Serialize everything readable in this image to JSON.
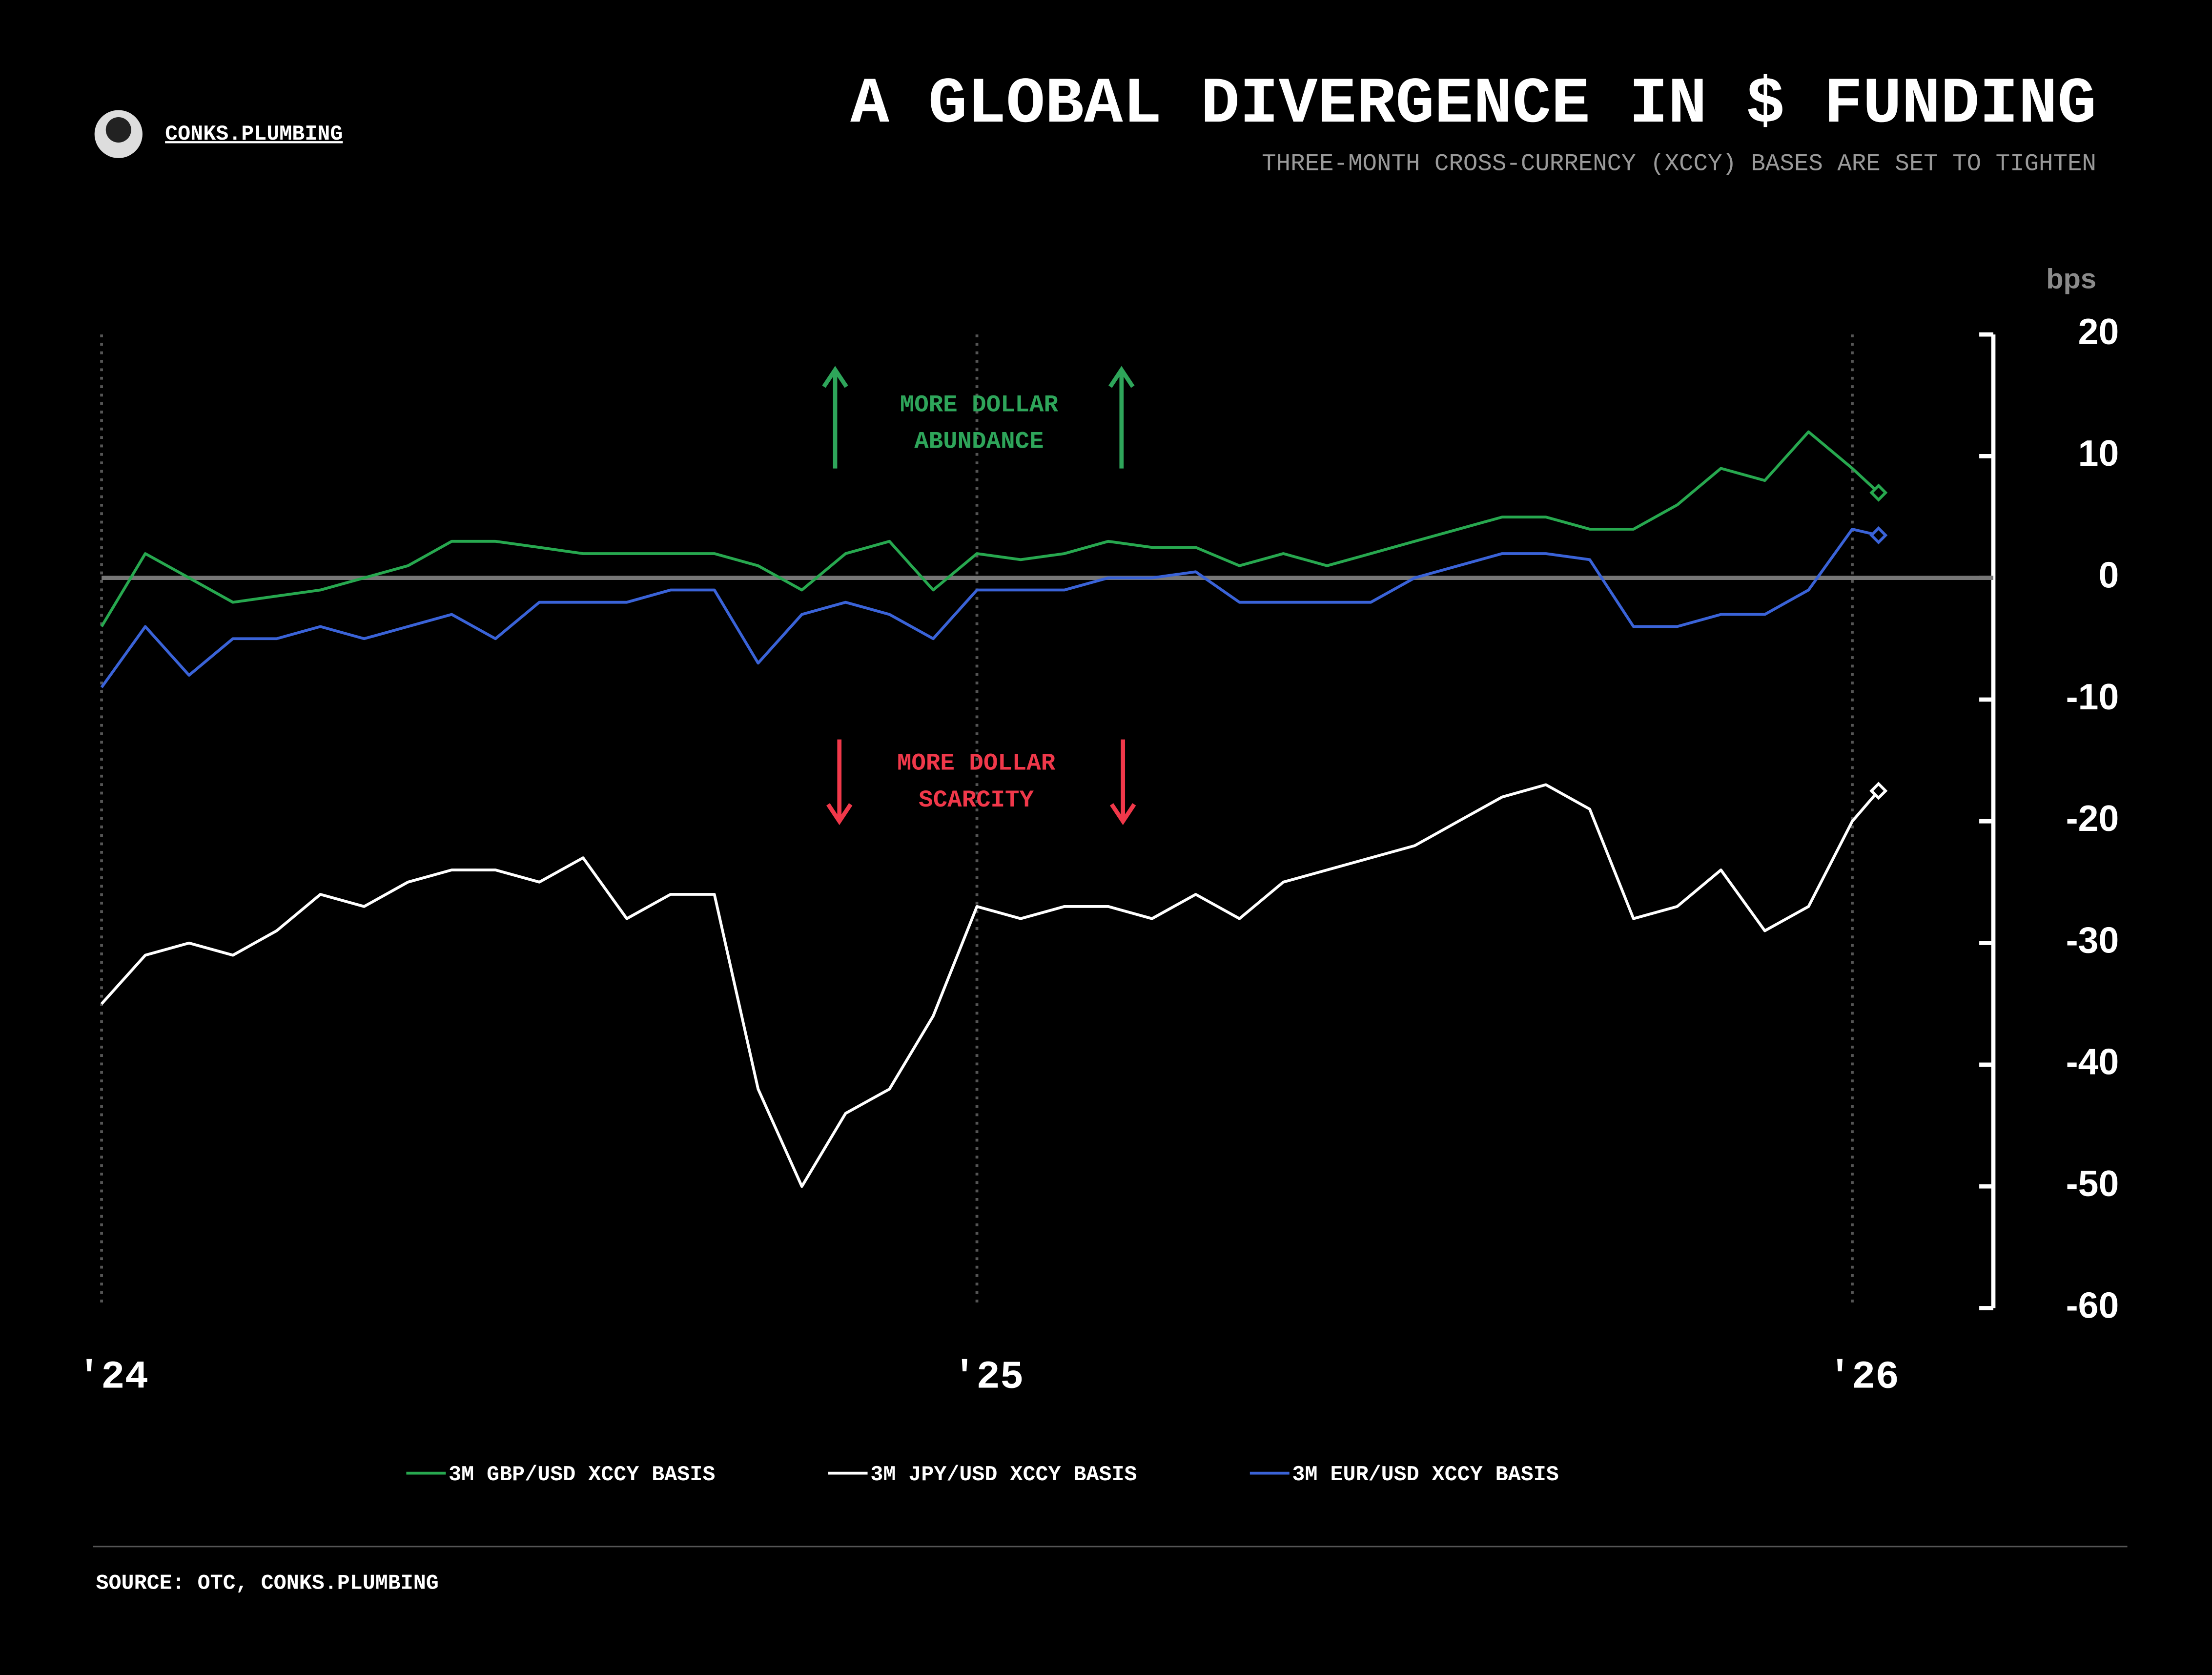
{
  "chart_data": {
    "type": "line",
    "title": "A GLOBAL DIVERGENCE IN $ FUNDING",
    "subtitle": "THREE-MONTH CROSS-CURRENCY (XCCY) BASES ARE SET TO TIGHTEN",
    "brand": "CONKS.PLUMBING",
    "y_label": "bps",
    "source": "SOURCE: OTC, CONKS.PLUMBING",
    "annotations": [
      {
        "lines": [
          "MORE DOLLAR",
          "ABUNDANCE"
        ],
        "color": "#2ea55a"
      },
      {
        "lines": [
          "MORE DOLLAR",
          "SCARCITY"
        ],
        "color": "#f0384a"
      }
    ],
    "x": [
      2024.0,
      2024.05,
      2024.1,
      2024.15,
      2024.2,
      2024.25,
      2024.3,
      2024.35,
      2024.4,
      2024.45,
      2024.5,
      2024.55,
      2024.6,
      2024.65,
      2024.7,
      2024.75,
      2024.8,
      2024.85,
      2024.9,
      2024.95,
      2025.0,
      2025.05,
      2025.1,
      2025.15,
      2025.2,
      2025.25,
      2025.3,
      2025.35,
      2025.4,
      2025.45,
      2025.5,
      2025.55,
      2025.6,
      2025.65,
      2025.7,
      2025.75,
      2025.8,
      2025.85,
      2025.9,
      2025.95,
      2026.0,
      2026.03
    ],
    "series": [
      {
        "name": "3M GBP/USD XCCY BASIS",
        "color": "#27a84f",
        "values": [
          -4,
          2,
          0,
          -2,
          -1.5,
          -1,
          0,
          1,
          3,
          3,
          2.5,
          2,
          2,
          2,
          2,
          1,
          -1,
          2,
          3,
          -1,
          2,
          1.5,
          2,
          3,
          2.5,
          2.5,
          1,
          2,
          1,
          2,
          3,
          4,
          5,
          5,
          4,
          4,
          6,
          9,
          8,
          12,
          9,
          7
        ]
      },
      {
        "name": "3M JPY/USD XCCY BASIS",
        "color": "#ffffff",
        "values": [
          -35,
          -31,
          -30,
          -31,
          -29,
          -26,
          -27,
          -25,
          -24,
          -24,
          -25,
          -23,
          -28,
          -26,
          -26,
          -42,
          -50,
          -44,
          -42,
          -36,
          -27,
          -28,
          -27,
          -27,
          -28,
          -26,
          -28,
          -25,
          -24,
          -23,
          -22,
          -20,
          -18,
          -17,
          -19,
          -28,
          -27,
          -24,
          -29,
          -27,
          -20,
          -17.5
        ]
      },
      {
        "name": "3M EUR/USD XCCY BASIS",
        "color": "#3a63d8",
        "values": [
          -9,
          -4,
          -8,
          -5,
          -5,
          -4,
          -5,
          -4,
          -3,
          -5,
          -2,
          -2,
          -2,
          -1,
          -1,
          -7,
          -3,
          -2,
          -3,
          -5,
          -1,
          -1,
          -1,
          0,
          0,
          0.5,
          -2,
          -2,
          -2,
          -2,
          0,
          1,
          2,
          2,
          1.5,
          -4,
          -4,
          -3,
          -3,
          -1,
          4,
          3.5
        ]
      }
    ],
    "xlim": [
      2024.0,
      2026.0
    ],
    "xticks": [
      {
        "value": 2024,
        "label": "'24"
      },
      {
        "value": 2025,
        "label": "'25"
      },
      {
        "value": 2026,
        "label": "'26"
      }
    ],
    "ylim": [
      -60,
      20
    ],
    "yticks": [
      20,
      10,
      0,
      -10,
      -20,
      -30,
      -40,
      -50,
      -60
    ]
  }
}
